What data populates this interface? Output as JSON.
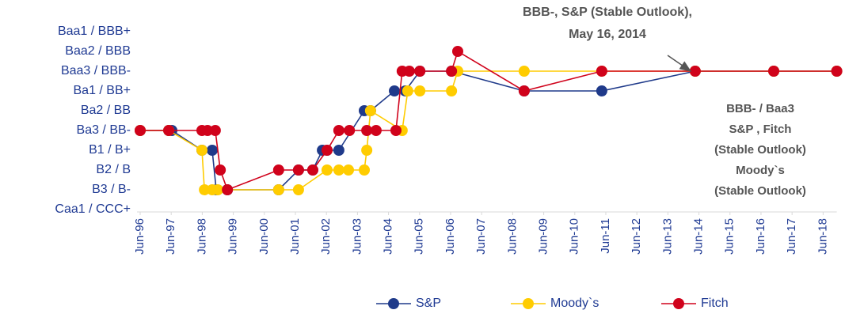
{
  "chart_data": {
    "type": "line",
    "annotation": [
      "BBB-, S&P (Stable Outlook),",
      "May 16, 2014"
    ],
    "note": [
      "BBB- / Baa3",
      "S&P , Fitch",
      "(Stable Outlook)",
      "Moody`s",
      "(Stable Outlook)"
    ],
    "xlim": [
      1996.46,
      2018.9
    ],
    "xticks": [
      {
        "value": 1996.46,
        "label": "Jun-96"
      },
      {
        "value": 1997.46,
        "label": "Jun-97"
      },
      {
        "value": 1998.46,
        "label": "Jun-98"
      },
      {
        "value": 1999.46,
        "label": "Jun-99"
      },
      {
        "value": 2000.46,
        "label": "Jun-00"
      },
      {
        "value": 2001.46,
        "label": "Jun-01"
      },
      {
        "value": 2002.46,
        "label": "Jun-02"
      },
      {
        "value": 2003.46,
        "label": "Jun-03"
      },
      {
        "value": 2004.46,
        "label": "Jun-04"
      },
      {
        "value": 2005.46,
        "label": "Jun-05"
      },
      {
        "value": 2006.46,
        "label": "Jun-06"
      },
      {
        "value": 2007.46,
        "label": "Jun-07"
      },
      {
        "value": 2008.46,
        "label": "Jun-08"
      },
      {
        "value": 2009.46,
        "label": "Jun-09"
      },
      {
        "value": 2010.46,
        "label": "Jun-10"
      },
      {
        "value": 2011.46,
        "label": "Jun-11"
      },
      {
        "value": 2012.46,
        "label": "Jun-12"
      },
      {
        "value": 2013.46,
        "label": "Jun-13"
      },
      {
        "value": 2014.46,
        "label": "Jun-14"
      },
      {
        "value": 2015.46,
        "label": "Jun-15"
      },
      {
        "value": 2016.46,
        "label": "Jun-16"
      },
      {
        "value": 2017.46,
        "label": "Jun-17"
      },
      {
        "value": 2018.46,
        "label": "Jun-18"
      }
    ],
    "ylim": [
      0,
      9
    ],
    "yticks": [
      {
        "value": 0,
        "label": "Caa1 / CCC+"
      },
      {
        "value": 1,
        "label": "B3 / B-"
      },
      {
        "value": 2,
        "label": "B2 / B"
      },
      {
        "value": 3,
        "label": "B1 / B+"
      },
      {
        "value": 4,
        "label": "Ba3 / BB-"
      },
      {
        "value": 5,
        "label": "Ba2 / BB"
      },
      {
        "value": 6,
        "label": "Ba1 / BB+"
      },
      {
        "value": 7,
        "label": "Baa3 / BBB-"
      },
      {
        "value": 8,
        "label": "Baa2 / BBB"
      },
      {
        "value": 9,
        "label": "Baa1 / BBB+"
      }
    ],
    "series": [
      {
        "name": "S&P",
        "color": "#1f3a8a",
        "x": [
          1996.46,
          1997.38,
          1997.48,
          1998.45,
          1998.78,
          1998.91,
          1999.27,
          2000.92,
          2001.56,
          2002.02,
          2002.33,
          2002.48,
          2002.86,
          2003.68,
          2003.88,
          2004.65,
          2005.0,
          2005.47,
          2006.49,
          2008.83,
          2011.33,
          2014.34,
          2016.87,
          2018.9
        ],
        "values": [
          4,
          4,
          4,
          3,
          3,
          1,
          1,
          1,
          2,
          2,
          3,
          3,
          3,
          5,
          5,
          6,
          6,
          7,
          7,
          6,
          6,
          7,
          7,
          7
        ]
      },
      {
        "name": "Moody`s",
        "color": "#ffcc00",
        "x": [
          1996.46,
          1997.38,
          1998.45,
          1998.53,
          1998.78,
          1998.96,
          2000.92,
          2001.56,
          2002.48,
          2002.86,
          2003.17,
          2003.68,
          2003.76,
          2003.88,
          2004.9,
          2005.08,
          2005.47,
          2006.49,
          2006.69,
          2008.83,
          2011.33,
          2014.34,
          2016.87,
          2018.9
        ],
        "values": [
          4,
          4,
          3,
          1,
          1,
          1,
          1,
          1,
          2,
          2,
          2,
          2,
          3,
          5,
          4,
          6,
          6,
          6,
          7,
          7,
          7,
          7,
          7,
          7
        ]
      },
      {
        "name": "Fitch",
        "color": "#d0021b",
        "x": [
          1996.46,
          1997.38,
          1998.45,
          1998.63,
          1998.88,
          1999.04,
          1999.27,
          2000.92,
          2001.56,
          2002.02,
          2002.48,
          2002.86,
          2003.2,
          2003.76,
          2004.06,
          2004.7,
          2004.9,
          2005.13,
          2005.47,
          2006.49,
          2006.69,
          2008.83,
          2011.33,
          2014.34,
          2016.87,
          2018.9
        ],
        "values": [
          4,
          4,
          4,
          4,
          4,
          2,
          1,
          2,
          2,
          2,
          3,
          4,
          4,
          4,
          4,
          4,
          7,
          7,
          7,
          7,
          8,
          6,
          7,
          7,
          7,
          7
        ]
      }
    ]
  }
}
